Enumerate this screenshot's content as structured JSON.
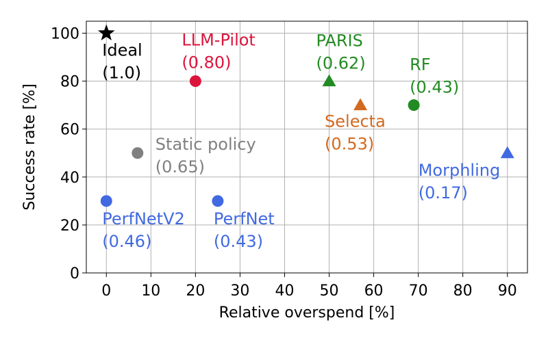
{
  "chart_data": {
    "type": "scatter",
    "title": "",
    "xlabel": "Relative overspend [%]",
    "ylabel": "Success rate [%]",
    "xlim": [
      -4.5,
      94.5
    ],
    "ylim": [
      0,
      105
    ],
    "xticks": [
      0,
      10,
      20,
      30,
      40,
      50,
      60,
      70,
      80,
      90
    ],
    "yticks": [
      0,
      20,
      40,
      60,
      80,
      100
    ],
    "grid": true,
    "legend": "none",
    "points": [
      {
        "name": "Ideal",
        "score": "(1.0)",
        "x": 0,
        "y": 100,
        "marker": "star",
        "color": "#000000"
      },
      {
        "name": "LLM-Pilot",
        "score": "(0.80)",
        "x": 20,
        "y": 80,
        "marker": "circle",
        "color": "#dc143c"
      },
      {
        "name": "PARIS",
        "score": "(0.62)",
        "x": 50,
        "y": 80,
        "marker": "triangle",
        "color": "#228b22"
      },
      {
        "name": "RF",
        "score": "(0.43)",
        "x": 69,
        "y": 70,
        "marker": "circle",
        "color": "#228b22"
      },
      {
        "name": "Selecta",
        "score": "(0.53)",
        "x": 57,
        "y": 70,
        "marker": "triangle",
        "color": "#d2691e"
      },
      {
        "name": "Static policy",
        "score": "(0.65)",
        "x": 7,
        "y": 50,
        "marker": "circle",
        "color": "#808080"
      },
      {
        "name": "Morphling",
        "score": "(0.17)",
        "x": 90,
        "y": 50,
        "marker": "triangle",
        "color": "#4169e1"
      },
      {
        "name": "PerfNetV2",
        "score": "(0.46)",
        "x": 0,
        "y": 30,
        "marker": "circle",
        "color": "#4169e1"
      },
      {
        "name": "PerfNet",
        "score": "(0.43)",
        "x": 25,
        "y": 30,
        "marker": "circle",
        "color": "#4169e1"
      }
    ]
  }
}
